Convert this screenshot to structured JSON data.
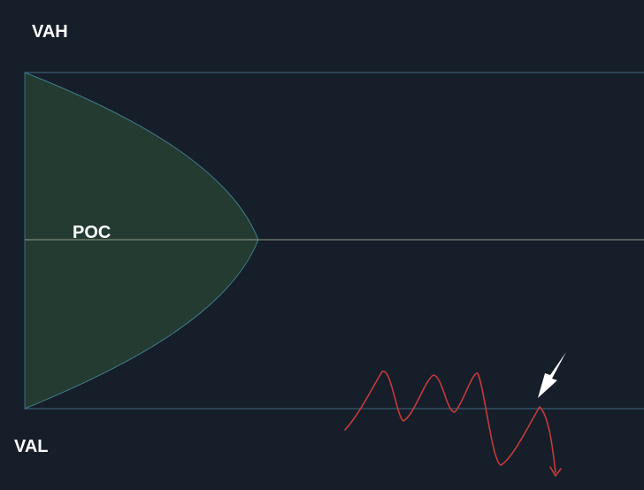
{
  "labels": {
    "vah": "VAH",
    "poc": "POC",
    "val": "VAL"
  },
  "colors": {
    "background": "#161e29",
    "value_area_line": "#3d6c80",
    "poc_line": "#8f9a87",
    "profile_fill": "#243b32",
    "profile_stroke": "#3f7d8a",
    "price_path": "#c63a3a",
    "arrow": "#ffffff"
  }
}
